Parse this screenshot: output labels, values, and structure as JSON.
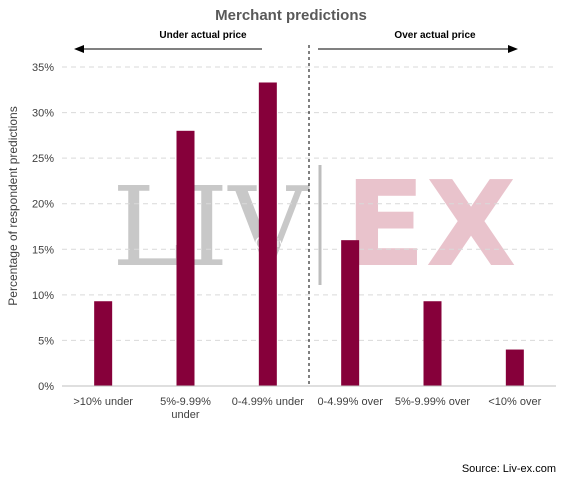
{
  "chart_data": {
    "type": "bar",
    "title": "Merchant predictions",
    "ylabel": "Percentage of respondent predictions",
    "xlabel": "",
    "ylim": [
      0,
      35
    ],
    "yticks": [
      "0%",
      "5%",
      "10%",
      "15%",
      "20%",
      "25%",
      "30%",
      "35%"
    ],
    "grid": true,
    "categories": [
      ">10% under",
      "5%-9.99% under",
      "0-4.99% under",
      "0-4.99% over",
      "5%-9.99% over",
      "<10% over"
    ],
    "values": [
      9.3,
      28.0,
      33.3,
      16.0,
      9.3,
      4.0
    ],
    "bar_color": "#86003a",
    "annotations": {
      "under_label": "Under actual price",
      "over_label": "Over actual price"
    },
    "source": "Source: Liv-ex.com"
  },
  "watermark": {
    "left": "LIV",
    "right": "EX",
    "overlay": "Liv-ex"
  }
}
